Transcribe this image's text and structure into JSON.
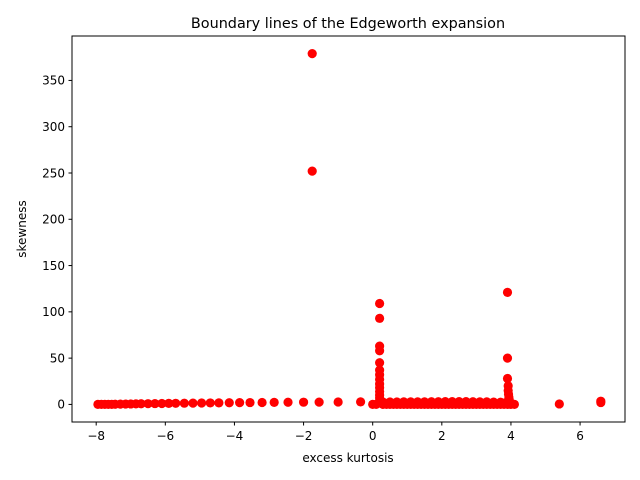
{
  "chart_data": {
    "type": "scatter",
    "title": "Boundary lines of the Edgeworth expansion",
    "xlabel": "excess kurtosis",
    "ylabel": "skewness",
    "xlim": [
      -8.7,
      7.3
    ],
    "ylim": [
      -19,
      398
    ],
    "xticks": [
      -8,
      -6,
      -4,
      -2,
      0,
      2,
      4,
      6
    ],
    "xtick_labels": [
      "−8",
      "−6",
      "−4",
      "−2",
      "0",
      "2",
      "4",
      "6"
    ],
    "yticks": [
      0,
      50,
      100,
      150,
      200,
      250,
      300,
      350
    ],
    "ytick_labels": [
      "0",
      "50",
      "100",
      "150",
      "200",
      "250",
      "300",
      "350"
    ],
    "grid": false,
    "marker_color": "#ff0000",
    "points": [
      {
        "x": -7.95,
        "y": 0
      },
      {
        "x": -7.85,
        "y": 0
      },
      {
        "x": -7.75,
        "y": 0
      },
      {
        "x": -7.65,
        "y": 0
      },
      {
        "x": -7.55,
        "y": 0
      },
      {
        "x": -7.45,
        "y": 0.2
      },
      {
        "x": -7.3,
        "y": 0.3
      },
      {
        "x": -7.15,
        "y": 0.4
      },
      {
        "x": -7.0,
        "y": 0.5
      },
      {
        "x": -6.85,
        "y": 0.6
      },
      {
        "x": -6.7,
        "y": 0.7
      },
      {
        "x": -6.5,
        "y": 0.8
      },
      {
        "x": -6.3,
        "y": 0.9
      },
      {
        "x": -6.1,
        "y": 1.0
      },
      {
        "x": -5.9,
        "y": 1.1
      },
      {
        "x": -5.7,
        "y": 1.2
      },
      {
        "x": -5.45,
        "y": 1.3
      },
      {
        "x": -5.2,
        "y": 1.4
      },
      {
        "x": -4.95,
        "y": 1.5
      },
      {
        "x": -4.7,
        "y": 1.6
      },
      {
        "x": -4.45,
        "y": 1.7
      },
      {
        "x": -4.15,
        "y": 1.8
      },
      {
        "x": -3.85,
        "y": 1.9
      },
      {
        "x": -3.55,
        "y": 2.0
      },
      {
        "x": -3.2,
        "y": 2.1
      },
      {
        "x": -2.85,
        "y": 2.2
      },
      {
        "x": -2.45,
        "y": 2.3
      },
      {
        "x": -2.0,
        "y": 2.4
      },
      {
        "x": -1.55,
        "y": 2.5
      },
      {
        "x": -1.0,
        "y": 2.6
      },
      {
        "x": -0.35,
        "y": 2.7
      },
      {
        "x": -1.75,
        "y": 379
      },
      {
        "x": -1.75,
        "y": 252
      },
      {
        "x": 0.2,
        "y": 109
      },
      {
        "x": 0.2,
        "y": 93
      },
      {
        "x": 0.2,
        "y": 63
      },
      {
        "x": 0.2,
        "y": 58
      },
      {
        "x": 0.2,
        "y": 45
      },
      {
        "x": 0.2,
        "y": 37
      },
      {
        "x": 0.2,
        "y": 32
      },
      {
        "x": 0.2,
        "y": 27
      },
      {
        "x": 0.2,
        "y": 22
      },
      {
        "x": 0.2,
        "y": 18
      },
      {
        "x": 0.2,
        "y": 14
      },
      {
        "x": 0.2,
        "y": 10
      },
      {
        "x": 0.2,
        "y": 7
      },
      {
        "x": 0.2,
        "y": 4
      },
      {
        "x": 0.0,
        "y": 0
      },
      {
        "x": 0.1,
        "y": 0
      },
      {
        "x": 0.3,
        "y": 0
      },
      {
        "x": 0.4,
        "y": 0
      },
      {
        "x": 0.5,
        "y": 0
      },
      {
        "x": 0.6,
        "y": 0
      },
      {
        "x": 0.7,
        "y": 0
      },
      {
        "x": 0.8,
        "y": 0
      },
      {
        "x": 0.9,
        "y": 0
      },
      {
        "x": 1.0,
        "y": 0
      },
      {
        "x": 1.1,
        "y": 0
      },
      {
        "x": 1.2,
        "y": 0
      },
      {
        "x": 1.3,
        "y": 0
      },
      {
        "x": 1.4,
        "y": 0
      },
      {
        "x": 1.5,
        "y": 0
      },
      {
        "x": 1.6,
        "y": 0
      },
      {
        "x": 1.7,
        "y": 0
      },
      {
        "x": 1.8,
        "y": 0
      },
      {
        "x": 1.9,
        "y": 0
      },
      {
        "x": 2.0,
        "y": 0
      },
      {
        "x": 2.1,
        "y": 0
      },
      {
        "x": 2.2,
        "y": 0
      },
      {
        "x": 2.3,
        "y": 0
      },
      {
        "x": 2.4,
        "y": 0
      },
      {
        "x": 2.5,
        "y": 0
      },
      {
        "x": 2.6,
        "y": 0
      },
      {
        "x": 2.7,
        "y": 0
      },
      {
        "x": 2.8,
        "y": 0
      },
      {
        "x": 2.9,
        "y": 0
      },
      {
        "x": 3.0,
        "y": 0
      },
      {
        "x": 3.1,
        "y": 0
      },
      {
        "x": 3.2,
        "y": 0
      },
      {
        "x": 3.3,
        "y": 0
      },
      {
        "x": 3.4,
        "y": 0
      },
      {
        "x": 3.5,
        "y": 0
      },
      {
        "x": 3.6,
        "y": 0
      },
      {
        "x": 3.7,
        "y": 0
      },
      {
        "x": 3.8,
        "y": 0
      },
      {
        "x": 3.9,
        "y": 0
      },
      {
        "x": 4.0,
        "y": 0
      },
      {
        "x": 4.1,
        "y": 0
      },
      {
        "x": 0.3,
        "y": 2.5
      },
      {
        "x": 0.5,
        "y": 2.6
      },
      {
        "x": 0.7,
        "y": 2.6
      },
      {
        "x": 0.9,
        "y": 2.7
      },
      {
        "x": 1.1,
        "y": 2.7
      },
      {
        "x": 1.3,
        "y": 2.8
      },
      {
        "x": 1.5,
        "y": 2.8
      },
      {
        "x": 1.7,
        "y": 2.9
      },
      {
        "x": 1.9,
        "y": 2.9
      },
      {
        "x": 2.1,
        "y": 3.0
      },
      {
        "x": 2.3,
        "y": 3.0
      },
      {
        "x": 2.5,
        "y": 3.0
      },
      {
        "x": 2.7,
        "y": 3.0
      },
      {
        "x": 2.9,
        "y": 2.9
      },
      {
        "x": 3.1,
        "y": 2.8
      },
      {
        "x": 3.3,
        "y": 2.7
      },
      {
        "x": 3.5,
        "y": 2.5
      },
      {
        "x": 3.7,
        "y": 2.3
      },
      {
        "x": 3.85,
        "y": 2.0
      },
      {
        "x": 3.9,
        "y": 121
      },
      {
        "x": 3.9,
        "y": 50
      },
      {
        "x": 3.9,
        "y": 28
      },
      {
        "x": 3.92,
        "y": 20
      },
      {
        "x": 3.92,
        "y": 15
      },
      {
        "x": 3.93,
        "y": 11
      },
      {
        "x": 3.94,
        "y": 8
      },
      {
        "x": 3.95,
        "y": 5
      },
      {
        "x": 3.96,
        "y": 3
      },
      {
        "x": 5.4,
        "y": 0.5
      },
      {
        "x": 6.6,
        "y": 3.5
      },
      {
        "x": 6.6,
        "y": 2.0
      }
    ]
  }
}
